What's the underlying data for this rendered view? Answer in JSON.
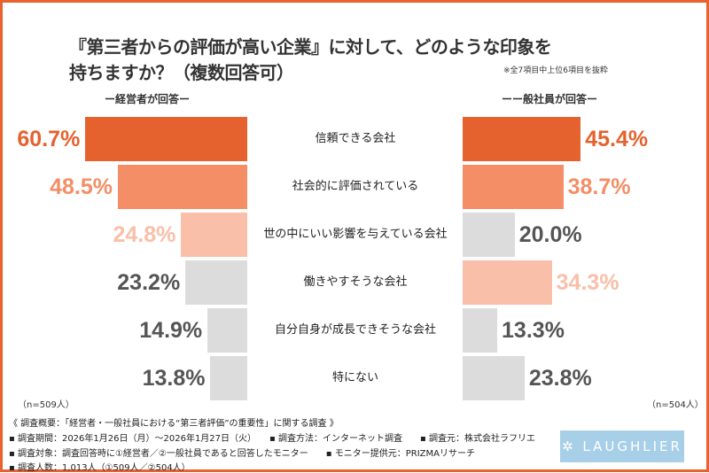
{
  "title_line1": "『第三者からの評価が高い企業』に対して、どのような印象を",
  "title_line2": "持ちますか？（複数回答可）",
  "note": "※全7項目中上位6項目を抜粋",
  "chart_data": {
    "type": "bar",
    "orientation": "horizontal-butterfly",
    "categories": [
      "信頼できる会社",
      "社会的に評価されている",
      "世の中にいい影響を与えている会社",
      "働きやすそうな会社",
      "自分自身が成長できそうな会社",
      "特にない"
    ],
    "series": [
      {
        "name": "ー経営者が回答ー",
        "values": [
          60.7,
          48.5,
          24.8,
          23.2,
          14.9,
          13.8
        ],
        "labels": [
          "60.7%",
          "48.5%",
          "24.8%",
          "23.2%",
          "14.9%",
          "13.8%"
        ],
        "colors": [
          "#e5622f",
          "#f48e66",
          "#f9bfa8",
          "#dcdcdc",
          "#dcdcdc",
          "#dcdcdc"
        ],
        "n": "（n=509人）"
      },
      {
        "name": "ーー般社員が回答ー",
        "values": [
          45.4,
          38.7,
          20.0,
          34.3,
          13.3,
          23.8
        ],
        "labels": [
          "45.4%",
          "38.7%",
          "20.0%",
          "34.3%",
          "13.3%",
          "23.8%"
        ],
        "colors": [
          "#e5622f",
          "#f48e66",
          "#dcdcdc",
          "#f9bfa8",
          "#dcdcdc",
          "#dcdcdc"
        ],
        "n": "（n=504人）"
      }
    ],
    "gray_text_color": "#555555",
    "accent_color": "#e8622f"
  },
  "footer": [
    "《 調査概要：「経営者・一般社員における“第三者評価”の重要性」に関する調査 》",
    "▪ 調査期間：2026年1月26日（月）～2026年1月27日（火）　　▪ 調査方法：インターネット調査　　▪ 調査元：株式会社ラフリエ",
    "▪ 調査対象：調査回答時に①経営者／②一般社員であると回答したモニター　　▪ モニター提供元：PRIZMAリサーチ",
    "▪ 調査人数：1,013人（①509人／②504人）"
  ],
  "logo": "LAUGHLIER"
}
